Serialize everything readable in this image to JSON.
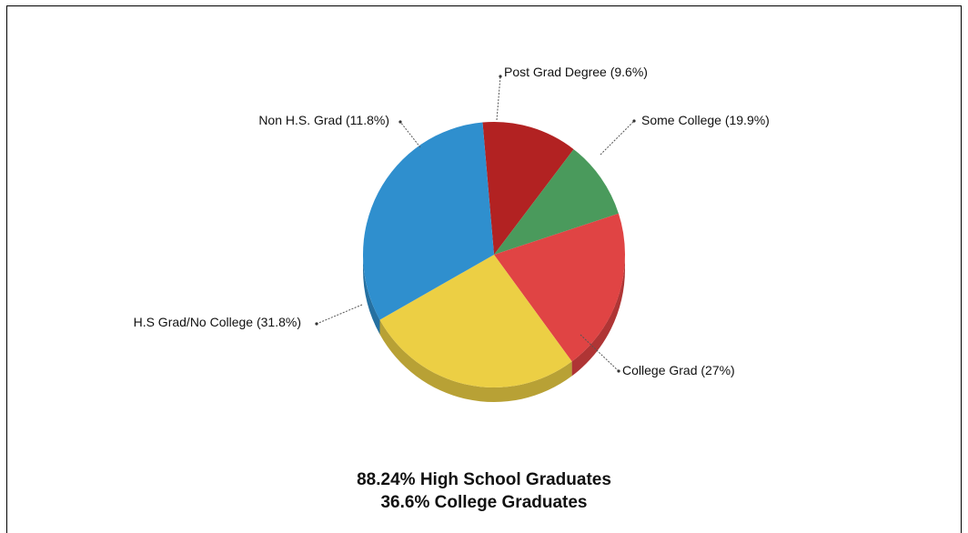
{
  "chart_data": {
    "type": "pie",
    "title": "",
    "slices": [
      {
        "label": "Non H.S. Grad (11.8%)",
        "value": 11.8,
        "color": "#b22222"
      },
      {
        "label": "Post Grad Degree (9.6%)",
        "value": 9.6,
        "color": "#4a9a5c"
      },
      {
        "label": "Some College (19.9%)",
        "value": 19.9,
        "color": "#e04444"
      },
      {
        "label": "College Grad (27%)",
        "value": 27,
        "color": "#eccf44"
      },
      {
        "label": "H.S Grad/No College (31.8%)",
        "value": 31.8,
        "color": "#2f8fce"
      }
    ],
    "style": "3d",
    "legend": "none"
  },
  "captions": {
    "line1": "88.24% High School Graduates",
    "line2": "36.6% College Graduates"
  }
}
